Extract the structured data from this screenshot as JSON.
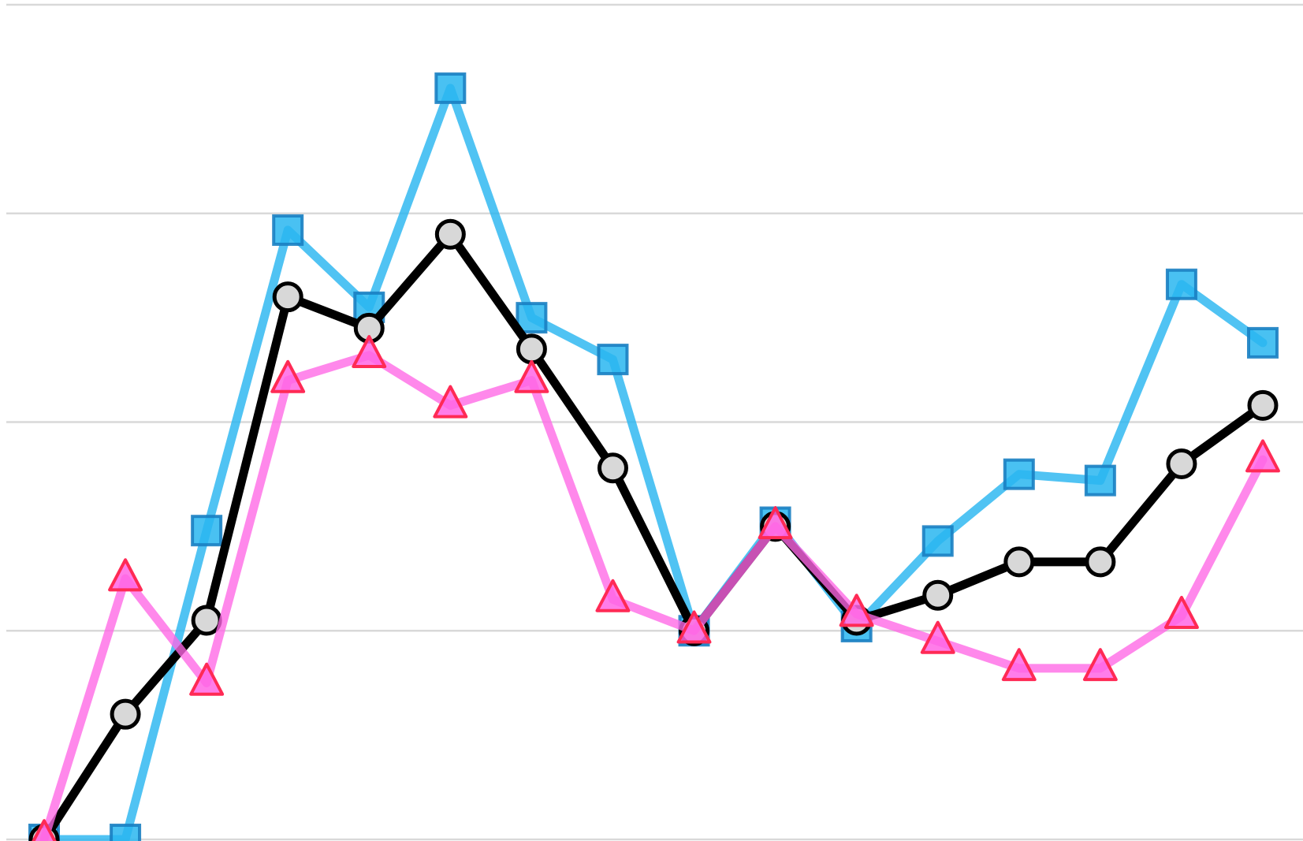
{
  "chart_data": {
    "type": "line",
    "title": "",
    "xlabel": "",
    "ylabel": "",
    "x": [
      1,
      2,
      3,
      4,
      5,
      6,
      7,
      8,
      9,
      10,
      11,
      12,
      13,
      14,
      15,
      16
    ],
    "xlim": [
      1,
      16
    ],
    "ylim": [
      0,
      4
    ],
    "yticks": [
      0,
      1,
      2,
      3,
      4
    ],
    "grid": "horizontal",
    "legend": "none",
    "series": [
      {
        "key": "squares",
        "color": "#29b6f0",
        "marker": "square",
        "values": [
          0.0,
          0.0,
          1.48,
          2.92,
          2.55,
          3.6,
          2.5,
          2.3,
          1.0,
          1.52,
          1.02,
          1.43,
          1.75,
          1.72,
          2.66,
          2.38
        ]
      },
      {
        "key": "circles",
        "color": "#000000",
        "marker": "circle",
        "values": [
          0.0,
          0.6,
          1.05,
          2.6,
          2.45,
          2.9,
          2.35,
          1.78,
          1.0,
          1.5,
          1.05,
          1.17,
          1.33,
          1.33,
          1.8,
          2.08
        ]
      },
      {
        "key": "triangles",
        "color": "#ff66e5",
        "marker": "triangle",
        "values": [
          0.0,
          1.25,
          0.75,
          2.2,
          2.32,
          2.08,
          2.2,
          1.15,
          1.0,
          1.5,
          1.08,
          0.95,
          0.82,
          0.82,
          1.07,
          1.82
        ]
      }
    ]
  }
}
